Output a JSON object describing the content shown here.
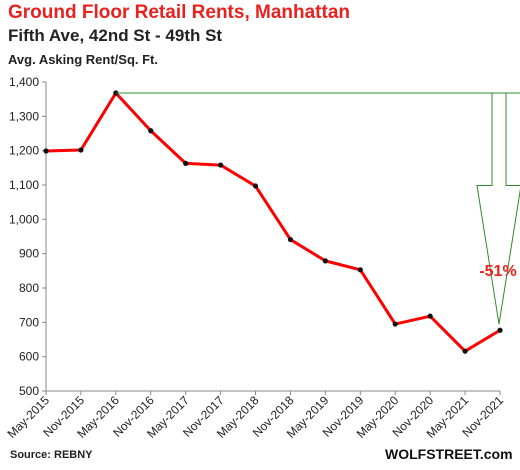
{
  "chart_data": {
    "type": "line",
    "title": "Ground  Floor Retail Rents, Manhattan",
    "subtitle": "Fifth Ave, 42nd St - 49th St",
    "ylabel": "Avg. Asking Rent/Sq. Ft.",
    "ylim": [
      500,
      1400
    ],
    "yticks": [
      "500",
      "600",
      "700",
      "800",
      "900",
      "1,000",
      "1,100",
      "1,200",
      "1,300",
      "1,400"
    ],
    "categories": [
      "May-2015",
      "Nov-2015",
      "May-2016",
      "Nov-2016",
      "May-2017",
      "Nov-2017",
      "May-2018",
      "Nov-2018",
      "May-2019",
      "Nov-2019",
      "May-2020",
      "Nov-2020",
      "May-2021",
      "Nov-2021"
    ],
    "series": [
      {
        "values": [
          1199,
          1202,
          1368,
          1258,
          1163,
          1158,
          1097,
          941,
          879,
          853,
          695,
          718,
          616,
          677
        ],
        "color": "#ff0000"
      }
    ],
    "annotation": {
      "text": "-51%",
      "color": "#e8221e",
      "arrow_color": "#2e8b2e"
    },
    "grid": false,
    "legend": "none"
  },
  "source": "Source: REBNY",
  "brand": "WOLFSTREET.com"
}
